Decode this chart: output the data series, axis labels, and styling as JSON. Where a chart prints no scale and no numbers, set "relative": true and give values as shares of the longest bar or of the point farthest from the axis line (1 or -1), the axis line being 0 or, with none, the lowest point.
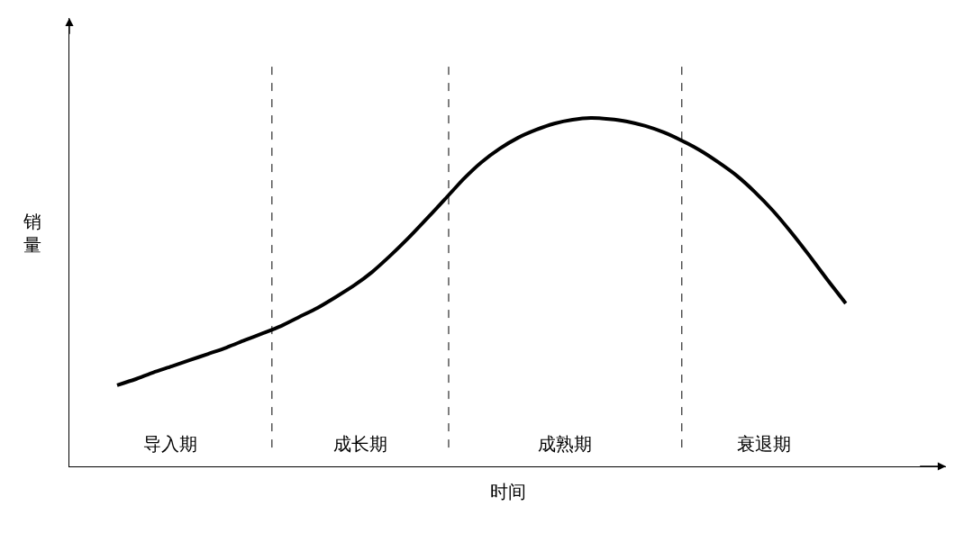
{
  "chart_data": {
    "type": "line",
    "relative": true,
    "xlabel": "时间",
    "ylabel": "销量",
    "line_style": "solid",
    "color": "#000000",
    "categories": [
      null,
      null,
      null,
      null,
      null,
      null,
      null,
      null,
      null,
      null,
      null,
      null,
      null,
      null,
      null,
      null,
      null,
      null,
      null,
      null,
      null,
      null,
      null,
      null,
      null,
      null,
      null,
      null,
      null,
      null,
      null,
      null,
      null,
      null,
      null,
      null,
      null,
      null,
      null,
      null,
      null
    ],
    "values": [
      0.233,
      0.25,
      0.27,
      0.287,
      0.305,
      0.323,
      0.341,
      0.362,
      0.382,
      0.403,
      0.429,
      0.455,
      0.486,
      0.519,
      0.558,
      0.605,
      0.656,
      0.711,
      0.767,
      0.824,
      0.873,
      0.912,
      0.943,
      0.966,
      0.984,
      0.995,
      1,
      0.997,
      0.99,
      0.977,
      0.959,
      0.935,
      0.907,
      0.873,
      0.835,
      0.788,
      0.734,
      0.672,
      0.605,
      0.535,
      0.468
    ],
    "annotations": [
      "导入期",
      "成长期",
      "成熟期",
      "衰退期"
    ]
  }
}
